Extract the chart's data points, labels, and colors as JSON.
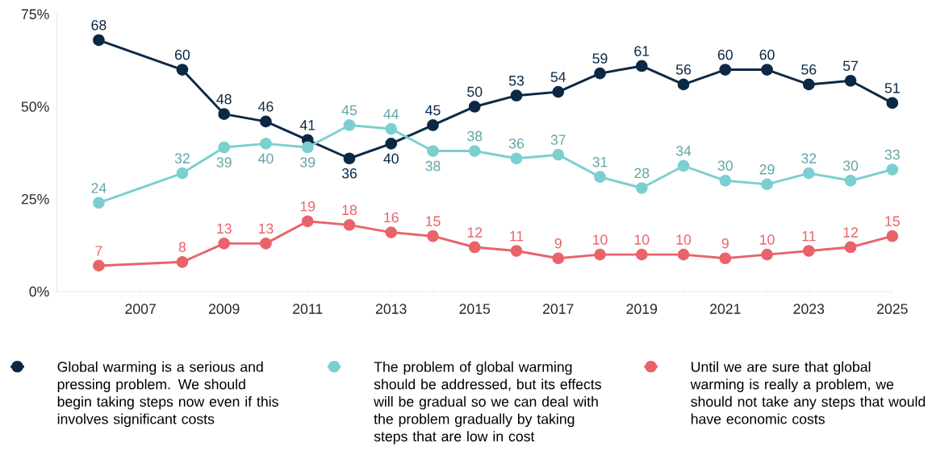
{
  "chart_data": {
    "type": "line",
    "x": [
      2006,
      2008,
      2009,
      2010,
      2011,
      2012,
      2013,
      2014,
      2015,
      2016,
      2017,
      2018,
      2019,
      2020,
      2021,
      2022,
      2023,
      2024,
      2025
    ],
    "series": [
      {
        "name": "Global warming is a serious and pressing problem. We should begin taking steps now even if this involves significant costs",
        "color": "#0b2945",
        "values": [
          68,
          60,
          48,
          46,
          41,
          36,
          40,
          45,
          50,
          53,
          54,
          59,
          61,
          56,
          60,
          60,
          56,
          57,
          51
        ]
      },
      {
        "name": "The problem of global warming should be addressed, but its effects will be gradual so we can deal with the problem gradually by taking steps that are low in cost",
        "color": "#7ccfd0",
        "values": [
          24,
          32,
          39,
          40,
          39,
          45,
          44,
          38,
          38,
          36,
          37,
          31,
          28,
          34,
          30,
          29,
          32,
          30,
          33
        ]
      },
      {
        "name": "Until we are sure that global warming is really a problem, we should not take any steps that would have economic costs",
        "color": "#e8646a",
        "values": [
          7,
          8,
          13,
          13,
          19,
          18,
          16,
          15,
          12,
          11,
          9,
          10,
          10,
          10,
          9,
          10,
          11,
          12,
          15
        ]
      }
    ],
    "xlim": [
      2005,
      2025
    ],
    "xticks": [
      {
        "value": 2006,
        "label": null
      },
      2007,
      {
        "value": 2008,
        "label": null
      },
      2009,
      {
        "value": 2010,
        "label": null
      },
      2011,
      {
        "value": 2012,
        "label": null
      },
      2013,
      {
        "value": 2014,
        "label": null
      },
      2015,
      {
        "value": 2016,
        "label": null
      },
      2017,
      {
        "value": 2018,
        "label": null
      },
      2019,
      {
        "value": 2020,
        "label": null
      },
      2021,
      {
        "value": 2022,
        "label": null
      },
      2023,
      {
        "value": 2024,
        "label": null
      },
      2025
    ],
    "ylim": [
      0,
      75
    ],
    "yticks": [
      {
        "value": 0,
        "label": "0%"
      },
      {
        "value": 25,
        "label": "25%"
      },
      {
        "value": 50,
        "label": "50%"
      },
      {
        "value": 75,
        "label": "75%"
      }
    ],
    "data_labels": true,
    "marker": "circle",
    "line_style": "solid",
    "legend": "bottom",
    "grid": false
  }
}
